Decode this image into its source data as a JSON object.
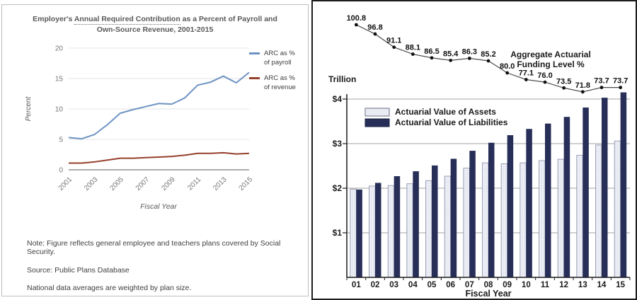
{
  "left_panel": {
    "title": {
      "line1_prefix": "Employer's ",
      "line1_underlined": "Annual Required Contribution",
      "line1_suffix": " as a Percent of Payroll and",
      "line2": "Own-Source Revenue, 2001-2015"
    },
    "notes": [
      "Note: Figure reflects general employee and teachers plans covered by Social Security.",
      "Source: Public Plans Database",
      "National data averages are weighted by plan size."
    ]
  },
  "chart_data": [
    {
      "type": "line",
      "title": "Employer's Annual Required Contribution as a Percent of Payroll and Own-Source Revenue, 2001-2015",
      "xlabel": "Fiscal Year",
      "ylabel": "Percent",
      "x": [
        2001,
        2002,
        2003,
        2004,
        2005,
        2006,
        2007,
        2008,
        2009,
        2010,
        2011,
        2012,
        2013,
        2014,
        2015
      ],
      "x_tick_labels": [
        "2001",
        "2003",
        "2005",
        "2007",
        "2009",
        "2011",
        "2013",
        "2015"
      ],
      "ylim": [
        0,
        20
      ],
      "yticks": [
        0,
        5,
        10,
        15,
        20
      ],
      "grid": true,
      "legend_position": "right",
      "series": [
        {
          "name": "ARC as % of payroll",
          "legend_lines": [
            "ARC as %",
            "of payroll"
          ],
          "color": "#6e93c3",
          "values": [
            5.3,
            5.1,
            5.8,
            7.4,
            9.3,
            9.9,
            10.4,
            10.9,
            10.8,
            11.8,
            13.9,
            14.4,
            15.4,
            14.3,
            16.0
          ]
        },
        {
          "name": "ARC as % of revenue",
          "legend_lines": [
            "ARC as %",
            "of revenue"
          ],
          "color": "#96402d",
          "values": [
            1.1,
            1.1,
            1.3,
            1.6,
            1.9,
            1.9,
            2.0,
            2.1,
            2.2,
            2.4,
            2.7,
            2.7,
            2.8,
            2.6,
            2.7
          ]
        }
      ]
    },
    {
      "type": "bar",
      "unit_label": "Trillion",
      "xlabel": "Fiscal Year",
      "categories": [
        "01",
        "02",
        "03",
        "04",
        "05",
        "06",
        "07",
        "08",
        "09",
        "10",
        "11",
        "12",
        "13",
        "14",
        "15"
      ],
      "ylim": [
        0,
        4.35
      ],
      "yticks": [
        1,
        2,
        3,
        4
      ],
      "ytick_labels": [
        "$1",
        "$2",
        "$3",
        "$4"
      ],
      "legend_position": "top-left-inside",
      "series": [
        {
          "name": "Actuarial Value of Assets",
          "color": "#e2e4f0",
          "values": [
            1.98,
            2.05,
            2.06,
            2.1,
            2.17,
            2.27,
            2.45,
            2.57,
            2.55,
            2.57,
            2.62,
            2.65,
            2.74,
            2.97,
            3.06
          ]
        },
        {
          "name": "Actuarial Value of Liabilities",
          "color": "#272e58",
          "values": [
            1.97,
            2.12,
            2.27,
            2.38,
            2.51,
            2.66,
            2.84,
            3.02,
            3.19,
            3.33,
            3.45,
            3.6,
            3.81,
            4.03,
            4.15
          ]
        }
      ],
      "overlay_line": {
        "label": "Aggregate Actuarial Funding Level %",
        "label_lines": [
          "Aggregate Actuarial",
          "Funding Level %"
        ],
        "values": [
          100.8,
          96.8,
          91.1,
          88.1,
          86.5,
          85.4,
          86.3,
          85.2,
          80.0,
          77.1,
          76.0,
          73.5,
          71.8,
          73.7,
          73.7
        ]
      }
    }
  ]
}
